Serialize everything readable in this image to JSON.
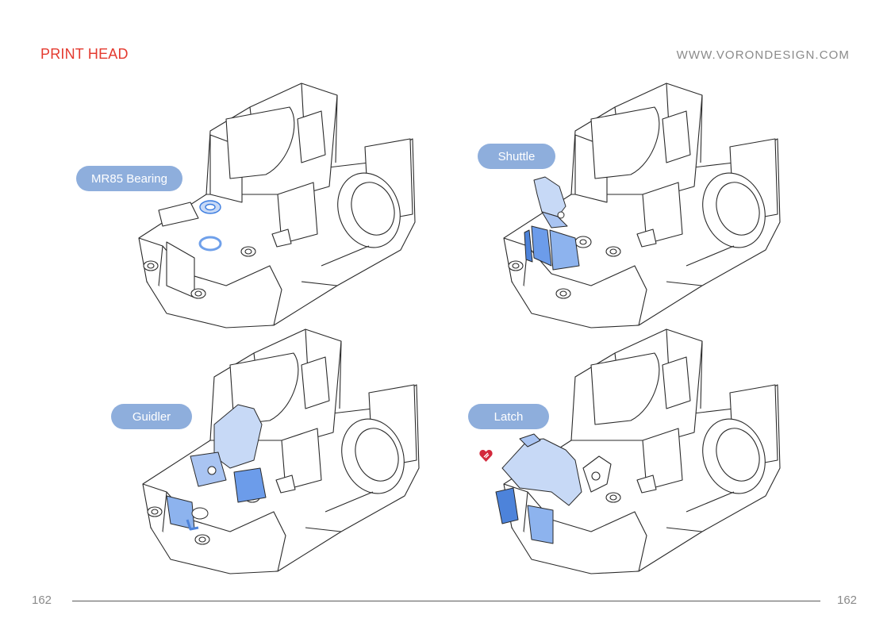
{
  "header": {
    "title": "PRINT HEAD",
    "website": "WWW.VORONDESIGN.COM"
  },
  "panels": [
    {
      "label": "MR85 Bearing"
    },
    {
      "label": "Shuttle"
    },
    {
      "label": "Guidler"
    },
    {
      "label": "Latch"
    }
  ],
  "footer": {
    "page_left": "162",
    "page_right": "162"
  },
  "colors": {
    "title_red": "#e43a2f",
    "callout_blue": "#8eaedc",
    "part_highlight": "#a9c4f2",
    "part_highlight_dark": "#5f93e6",
    "line_art": "#2a2a2a",
    "badge_red": "#d3283b"
  },
  "icons": {
    "mod_badge": "heart-badge-icon"
  }
}
